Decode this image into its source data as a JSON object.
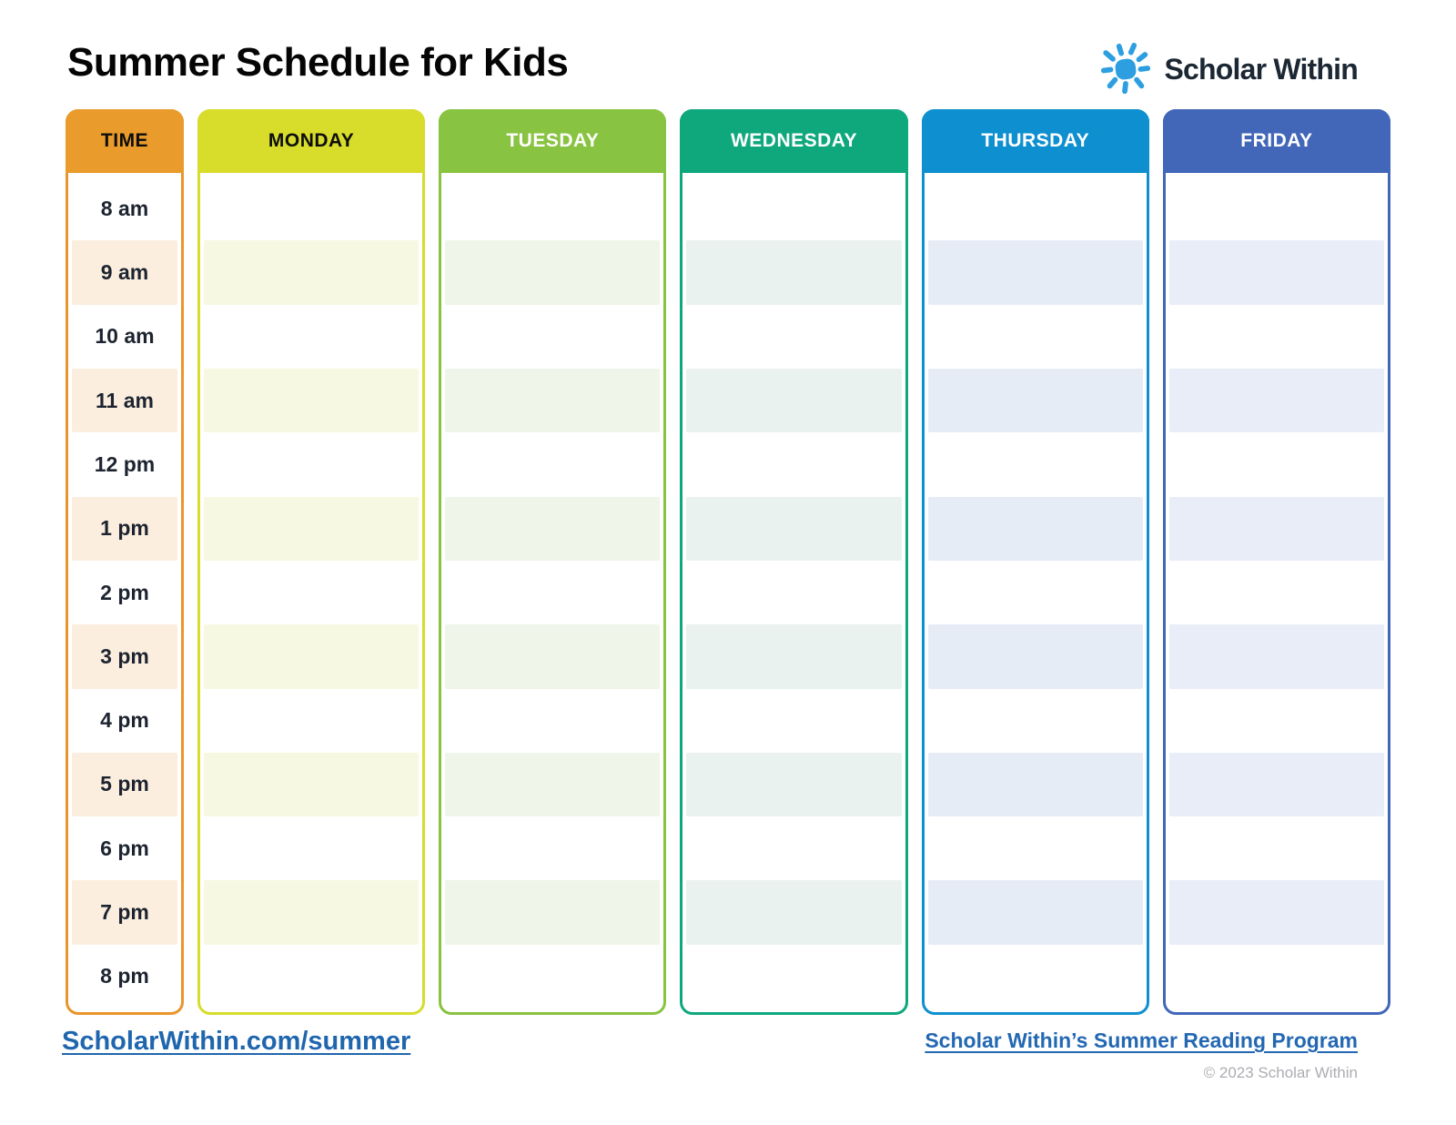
{
  "title": "Summer Schedule for Kids",
  "logo": {
    "brand": "Scholar Within",
    "icon": "sun-icon",
    "icon_color": "#2d9fe0",
    "text_color": "#1b2733"
  },
  "schedule": {
    "time_column": {
      "header": "TIME",
      "header_bg": "#e99b2b",
      "header_text": "#0d0d0d",
      "border": "#e9952c",
      "stripe": "#fbeedf"
    },
    "times": [
      "8 am",
      "9 am",
      "10 am",
      "11 am",
      "12 pm",
      "1 pm",
      "2 pm",
      "3 pm",
      "4 pm",
      "5 pm",
      "6 pm",
      "7 pm",
      "8 pm"
    ],
    "days": [
      {
        "label": "MONDAY",
        "header_bg": "#d8dc2b",
        "header_text": "#0d0d0d",
        "border": "#d8dc2b",
        "stripe": "#f7f8e1"
      },
      {
        "label": "TUESDAY",
        "header_bg": "#88c341",
        "header_text": "#ffffff",
        "border": "#88c341",
        "stripe": "#eff5e8"
      },
      {
        "label": "WEDNESDAY",
        "header_bg": "#0fa87d",
        "header_text": "#ffffff",
        "border": "#0fa87d",
        "stripe": "#e9f2ee"
      },
      {
        "label": "THURSDAY",
        "header_bg": "#0e90d0",
        "header_text": "#ffffff",
        "border": "#0e90d0",
        "stripe": "#e6ecf6"
      },
      {
        "label": "FRIDAY",
        "header_bg": "#4267b8",
        "header_text": "#ffffff",
        "border": "#4267b8",
        "stripe": "#e9edf7"
      }
    ]
  },
  "footer": {
    "left_link": "ScholarWithin.com/summer",
    "right_link": "Scholar Within’s Summer Reading Program",
    "copyright": "© 2023 Scholar Within"
  }
}
